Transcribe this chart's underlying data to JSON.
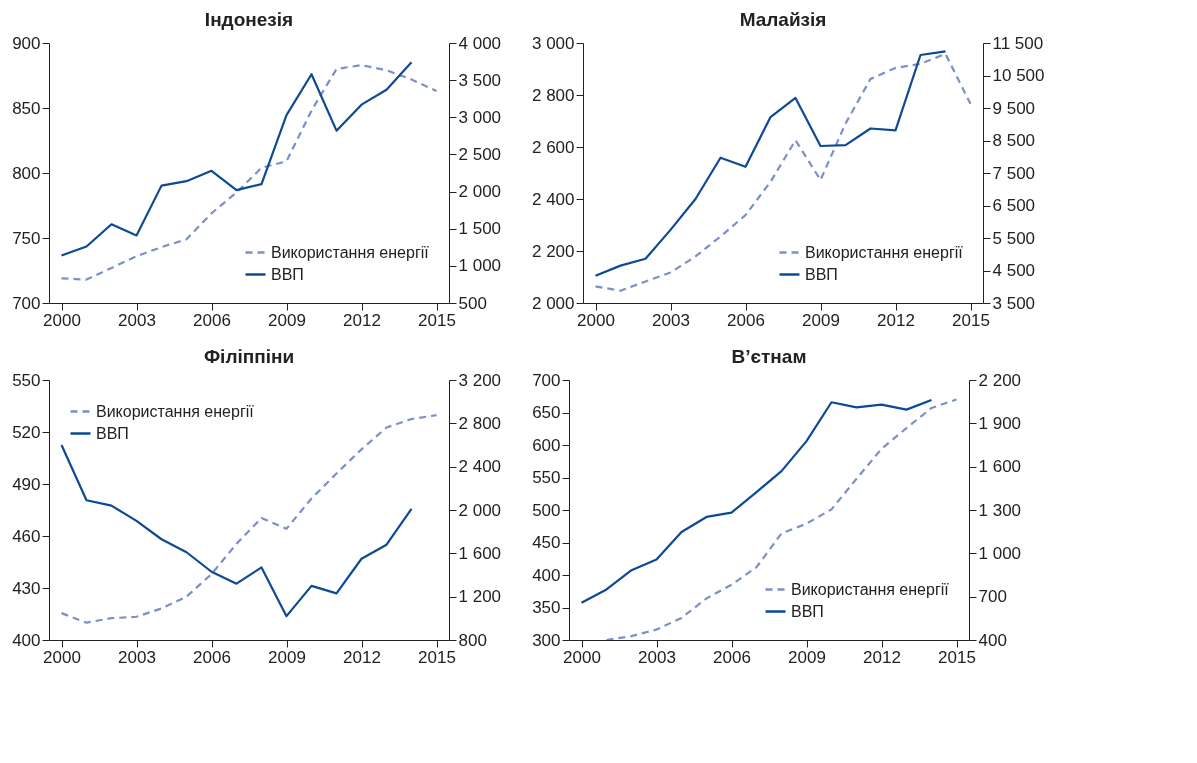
{
  "chart_data": [
    {
      "type": "line",
      "title": "Індонезія",
      "x": [
        2000,
        2001,
        2002,
        2003,
        2004,
        2005,
        2006,
        2007,
        2008,
        2009,
        2010,
        2011,
        2012,
        2013,
        2014,
        2015
      ],
      "xlim": [
        1999.5,
        2015.5
      ],
      "xticks": [
        2000,
        2003,
        2006,
        2009,
        2012,
        2015
      ],
      "ylim": [
        700,
        900
      ],
      "yticks": [
        700,
        750,
        800,
        850,
        900
      ],
      "y2lim": [
        500,
        4000
      ],
      "y2ticks": [
        500,
        {
          "value": 1000,
          "label": "1 000"
        },
        {
          "value": 1500,
          "label": "1 500"
        },
        {
          "value": 2000,
          "label": "2 000"
        },
        {
          "value": 2500,
          "label": "2 500"
        },
        {
          "value": 3000,
          "label": "3 000"
        },
        {
          "value": 3500,
          "label": "3 500"
        },
        {
          "value": 4000,
          "label": "4 000"
        }
      ],
      "grid": false,
      "legend": "bottom right",
      "series": [
        {
          "name": "Використання енергії",
          "color": "#7b8fc8",
          "line_style": "dashed",
          "values": [
            719,
            718,
            727,
            736,
            743,
            749,
            769,
            785,
            804,
            809,
            848,
            880,
            883,
            879,
            872,
            863
          ]
        },
        {
          "name": "ВВП",
          "color": "#0d4a94",
          "line_style": "solid",
          "axis": "y2",
          "values": [
            1140,
            1260,
            1560,
            1410,
            2080,
            2140,
            2280,
            2020,
            2100,
            3030,
            3580,
            2820,
            3170,
            3370,
            3740,
            null
          ]
        }
      ]
    },
    {
      "type": "line",
      "title": "Малайзія",
      "x": [
        2000,
        2001,
        2002,
        2003,
        2004,
        2005,
        2006,
        2007,
        2008,
        2009,
        2010,
        2011,
        2012,
        2013,
        2014,
        2015
      ],
      "xlim": [
        1999.5,
        2015.5
      ],
      "xticks": [
        2000,
        2003,
        2006,
        2009,
        2012,
        2015
      ],
      "ylim": [
        2000,
        3000
      ],
      "yticks": [
        {
          "value": 2000,
          "label": "2 000"
        },
        {
          "value": 2200,
          "label": "2 200"
        },
        {
          "value": 2400,
          "label": "2 400"
        },
        {
          "value": 2600,
          "label": "2 600"
        },
        {
          "value": 2800,
          "label": "2 800"
        },
        {
          "value": 3000,
          "label": "3 000"
        }
      ],
      "y2lim": [
        3500,
        11500
      ],
      "y2ticks": [
        {
          "value": 3500,
          "label": "3 500"
        },
        {
          "value": 4500,
          "label": "4 500"
        },
        {
          "value": 5500,
          "label": "5 500"
        },
        {
          "value": 6500,
          "label": "6 500"
        },
        {
          "value": 7500,
          "label": "7 500"
        },
        {
          "value": 8500,
          "label": "8 500"
        },
        {
          "value": 9500,
          "label": "9 500"
        },
        {
          "value": 10500,
          "label": "10 500"
        },
        {
          "value": 11500,
          "label": "11 500"
        }
      ],
      "grid": false,
      "legend": "bottom right",
      "series": [
        {
          "name": "Використання енергії",
          "color": "#7b8fc8",
          "line_style": "dashed",
          "values": [
            2064,
            2047,
            2083,
            2117,
            2179,
            2256,
            2338,
            2466,
            2626,
            2473,
            2690,
            2862,
            2904,
            2920,
            2958,
            2766
          ]
        },
        {
          "name": "ВВП",
          "color": "#0d4a94",
          "line_style": "solid",
          "axis": "y2",
          "values": [
            4340,
            4650,
            4860,
            5750,
            6700,
            7970,
            7690,
            9220,
            9810,
            8330,
            8360,
            8870,
            8810,
            11130,
            11240,
            null
          ]
        }
      ]
    },
    {
      "type": "line",
      "title": "Філіппіни",
      "x": [
        2000,
        2001,
        2002,
        2003,
        2004,
        2005,
        2006,
        2007,
        2008,
        2009,
        2010,
        2011,
        2012,
        2013,
        2014,
        2015
      ],
      "xlim": [
        1999.5,
        2015.5
      ],
      "xticks": [
        2000,
        2003,
        2006,
        2009,
        2012,
        2015
      ],
      "ylim": [
        400,
        550
      ],
      "yticks": [
        400,
        430,
        460,
        490,
        520,
        550
      ],
      "y2lim": [
        800,
        3200
      ],
      "y2ticks": [
        800,
        {
          "value": 1200,
          "label": "1 200"
        },
        {
          "value": 1600,
          "label": "1 600"
        },
        {
          "value": 2000,
          "label": "2 000"
        },
        {
          "value": 2400,
          "label": "2 400"
        },
        {
          "value": 2800,
          "label": "2 800"
        },
        {
          "value": 3200,
          "label": "3 200"
        }
      ],
      "grid": false,
      "legend": "top left",
      "series": [
        {
          "name": "Використання енергії",
          "color": "#7b8fc8",
          "line_style": "dashed",
          "values": [
            415.5,
            410,
            412.6,
            413.4,
            418.2,
            425,
            438,
            455.5,
            470.4,
            464.2,
            481.6,
            496.1,
            510,
            522.6,
            527.5,
            529.7
          ]
        },
        {
          "name": "ВВП",
          "color": "#0d4a94",
          "line_style": "solid",
          "axis": "y2",
          "values": [
            2600,
            2090,
            2040,
            1900,
            1730,
            1610,
            1430,
            1320,
            1470,
            1020,
            1300,
            1230,
            1550,
            1680,
            2010,
            null
          ]
        }
      ]
    },
    {
      "type": "line",
      "title": "В’єтнам",
      "x": [
        2000,
        2001,
        2002,
        2003,
        2004,
        2005,
        2006,
        2007,
        2008,
        2009,
        2010,
        2011,
        2012,
        2013,
        2014,
        2015
      ],
      "xlim": [
        1999.5,
        2015.5
      ],
      "xticks": [
        2000,
        2003,
        2006,
        2009,
        2012,
        2015
      ],
      "ylim": [
        300,
        700
      ],
      "yticks": [
        300,
        350,
        400,
        450,
        500,
        550,
        600,
        650,
        700
      ],
      "y2lim": [
        400,
        2200
      ],
      "y2ticks": [
        400,
        700,
        {
          "value": 1000,
          "label": "1 000"
        },
        {
          "value": 1300,
          "label": "1 300"
        },
        {
          "value": 1600,
          "label": "1 600"
        },
        {
          "value": 1900,
          "label": "1 900"
        },
        {
          "value": 2200,
          "label": "2 200"
        }
      ],
      "grid": false,
      "legend": "bottom right",
      "series": [
        {
          "name": "Використання енергії",
          "color": "#7b8fc8",
          "line_style": "dashed",
          "values": [
            null,
            300,
            306,
            316,
            334,
            364,
            385,
            412,
            464,
            479,
            501,
            548,
            594,
            626,
            657,
            670
          ]
        },
        {
          "name": "ВВП",
          "color": "#0d4a94",
          "line_style": "solid",
          "axis": "y2",
          "values": [
            658,
            750,
            883,
            957,
            1148,
            1252,
            1282,
            1424,
            1569,
            1777,
            2046,
            2011,
            2030,
            1995,
            2062,
            null
          ]
        }
      ]
    }
  ]
}
